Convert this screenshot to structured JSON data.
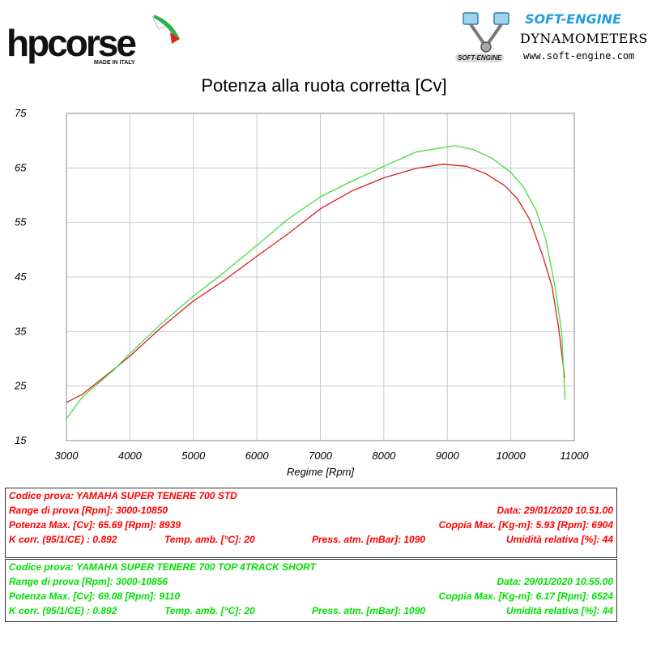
{
  "header": {
    "left_logo": {
      "brand": "hpcorse",
      "sub": "MADE IN ITALY"
    },
    "right_logo": {
      "brand": "SOFT-ENGINE",
      "title": "DYNAMOMETERS",
      "url": "www.soft-engine.com",
      "badge": "SOFT-ENGINE"
    }
  },
  "chart_data": {
    "type": "line",
    "title": "Potenza alla ruota corretta [Cv]",
    "xlabel": "Regime [Rpm]",
    "ylabel": "",
    "xlim": [
      3000,
      11000
    ],
    "ylim": [
      15,
      75
    ],
    "x_ticks": [
      3000,
      4000,
      5000,
      6000,
      7000,
      8000,
      9000,
      10000,
      11000
    ],
    "y_ticks": [
      15,
      25,
      35,
      45,
      55,
      65,
      75
    ],
    "grid": true,
    "series": [
      {
        "color": "#d62020",
        "x": [
          3000,
          3250,
          3500,
          3750,
          4000,
          4500,
          5000,
          5500,
          6000,
          6500,
          7000,
          7500,
          8000,
          8500,
          8939,
          9300,
          9600,
          9900,
          10100,
          10300,
          10500,
          10650,
          10750,
          10850
        ],
        "y": [
          22.0,
          23.5,
          25.8,
          28.1,
          30.5,
          35.8,
          40.6,
          44.5,
          48.8,
          53.0,
          57.5,
          60.8,
          63.2,
          64.9,
          65.69,
          65.3,
          64.0,
          61.8,
          59.4,
          55.5,
          49.0,
          43.2,
          36.0,
          26.5
        ]
      },
      {
        "color": "#44dd44",
        "x": [
          3000,
          3250,
          3500,
          3750,
          4000,
          4500,
          5000,
          5500,
          6000,
          6500,
          7000,
          7500,
          8000,
          8500,
          9110,
          9400,
          9700,
          10000,
          10200,
          10400,
          10550,
          10700,
          10800,
          10856
        ],
        "y": [
          19.0,
          23.0,
          25.5,
          28.0,
          31.0,
          36.5,
          41.5,
          46.0,
          50.8,
          55.7,
          59.7,
          62.6,
          65.3,
          67.9,
          69.08,
          68.4,
          66.8,
          64.2,
          61.5,
          57.2,
          52.0,
          43.0,
          35.0,
          22.5
        ]
      }
    ]
  },
  "info": {
    "red": {
      "codice": "Codice prova: YAMAHA SUPER TENERE 700 STD",
      "range": "Range di prova [Rpm]: 3000-10850",
      "data": "Data: 29/01/2020   10.51.00",
      "potenza": "Potenza Max. [Cv]: 65.69   [Rpm]: 8939",
      "coppia": "Coppia Max. [Kg-m]: 5.93   [Rpm]: 6904",
      "kcorr": "K corr. (95/1/CE) : 0.892",
      "temp": "Temp. amb. [°C]: 20",
      "press": "Press. atm. [mBar]: 1090",
      "umid": "Umidità relativa [%]: 44"
    },
    "green": {
      "codice": "Codice prova: YAMAHA SUPER TENERE 700 TOP 4TRACK SHORT",
      "range": "Range di prova [Rpm]: 3000-10856",
      "data": "Data: 29/01/2020   10.55.00",
      "potenza": "Potenza Max. [Cv]: 69.08   [Rpm]: 9110",
      "coppia": "Coppia Max. [Kg-m]: 6.17   [Rpm]: 6524",
      "kcorr": "K corr. (95/1/CE) : 0.892",
      "temp": "Temp. amb. [°C]: 20",
      "press": "Press. atm. [mBar]: 1090",
      "umid": "Umidità relativa [%]: 44"
    }
  }
}
